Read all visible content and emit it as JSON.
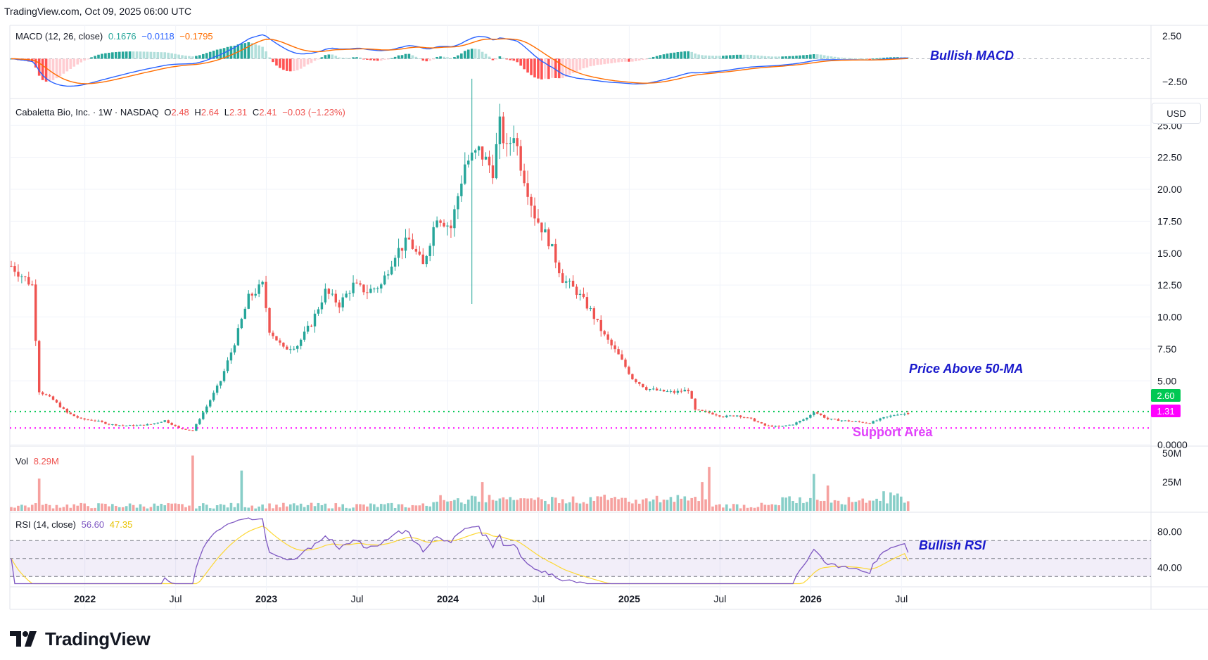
{
  "header": {
    "source": "TradingView.com, Oct 09, 2025 06:00 UTC"
  },
  "brand": {
    "name": "TradingView",
    "color": "#131722"
  },
  "colors": {
    "up": "#26a69a",
    "down": "#ef5350",
    "macd": "#2962ff",
    "signal": "#ff6d00",
    "rsi": "#7e57c2",
    "rsi_ma": "#fdd835",
    "ma_line": "#00c853",
    "support": "#ff00ff",
    "annotation_blue": "#1a1acc",
    "annotation_magenta": "#e040fb"
  },
  "macd": {
    "label": "MACD (12, 26, close)",
    "hist": "0.1676",
    "macd_value": "−0.0118",
    "signal_value": "−0.1795",
    "ticks": [
      "2.50",
      "−2.50"
    ],
    "annotation": "Bullish MACD"
  },
  "main": {
    "symbol": "Cabaletta Bio, Inc. · 1W · NASDAQ",
    "o_label": "O",
    "o": "2.48",
    "h_label": "H",
    "h": "2.64",
    "l_label": "L",
    "l": "2.31",
    "c_label": "C",
    "c": "2.41",
    "change": "−0.03 (−1.23%)",
    "currency_button": "USD",
    "price_ticks": [
      "25.00",
      "22.50",
      "20.00",
      "17.50",
      "15.00",
      "12.50",
      "10.00",
      "7.50",
      "5.00",
      "0.0000"
    ],
    "ma_tag": "2.60",
    "support_tag": "1.31",
    "annotation_ma": "Price Above 50-MA",
    "annotation_support": "Support Area"
  },
  "volume": {
    "label": "Vol",
    "value": "8.29M",
    "ticks": [
      "50M",
      "25M"
    ]
  },
  "rsi": {
    "label": "RSI (14, close)",
    "value": "56.60",
    "ma_value": "47.35",
    "ticks": [
      "80.00",
      "40.00"
    ],
    "annotation": "Bullish RSI"
  },
  "time_axis": [
    "2022",
    "Jul",
    "2023",
    "Jul",
    "2024",
    "Jul",
    "2025",
    "Jul",
    "2026",
    "Jul"
  ],
  "chart_data": {
    "type": "candlestick",
    "title": "Cabaletta Bio, Inc. · 1W · NASDAQ",
    "x_start": "2021-11-01",
    "interval": "1W",
    "x_axis_ticks": [
      "2022",
      "Jul",
      "2023",
      "Jul",
      "2024",
      "Jul",
      "2025",
      "Jul",
      "2026",
      "Jul"
    ],
    "ylim": [
      0,
      27
    ],
    "close_path": [
      [
        0,
        14.0
      ],
      [
        6,
        12.5
      ],
      [
        8,
        4.2
      ],
      [
        12,
        3.5
      ],
      [
        16,
        2.5
      ],
      [
        20,
        2.0
      ],
      [
        24,
        1.9
      ],
      [
        28,
        1.6
      ],
      [
        32,
        1.5
      ],
      [
        36,
        1.5
      ],
      [
        40,
        1.6
      ],
      [
        44,
        1.9
      ],
      [
        48,
        1.3
      ],
      [
        52,
        1.1
      ],
      [
        56,
        3.0
      ],
      [
        60,
        5.0
      ],
      [
        64,
        8.0
      ],
      [
        68,
        11.5
      ],
      [
        72,
        12.5
      ],
      [
        74,
        9.0
      ],
      [
        78,
        7.5
      ],
      [
        82,
        7.8
      ],
      [
        86,
        9.5
      ],
      [
        90,
        12.0
      ],
      [
        94,
        11.0
      ],
      [
        98,
        12.5
      ],
      [
        102,
        12.0
      ],
      [
        106,
        12.5
      ],
      [
        110,
        15.0
      ],
      [
        114,
        16.0
      ],
      [
        118,
        14.0
      ],
      [
        122,
        18.0
      ],
      [
        126,
        17.0
      ],
      [
        130,
        22.0
      ],
      [
        134,
        23.0
      ],
      [
        138,
        21.5
      ],
      [
        140,
        25.0
      ],
      [
        142,
        23.0
      ],
      [
        144,
        24.5
      ],
      [
        146,
        22.0
      ],
      [
        150,
        18.0
      ],
      [
        154,
        16.0
      ],
      [
        158,
        13.0
      ],
      [
        162,
        12.0
      ],
      [
        166,
        10.5
      ],
      [
        170,
        8.5
      ],
      [
        174,
        7.0
      ],
      [
        178,
        5.2
      ],
      [
        182,
        4.4
      ],
      [
        186,
        4.2
      ],
      [
        190,
        4.1
      ],
      [
        194,
        4.3
      ],
      [
        196,
        2.7
      ],
      [
        200,
        2.5
      ],
      [
        204,
        2.2
      ],
      [
        208,
        2.3
      ],
      [
        212,
        2.0
      ],
      [
        216,
        1.5
      ],
      [
        220,
        1.4
      ],
      [
        224,
        1.6
      ],
      [
        228,
        2.1
      ],
      [
        230,
        2.6
      ],
      [
        234,
        2.0
      ],
      [
        238,
        1.9
      ],
      [
        242,
        1.8
      ],
      [
        246,
        1.7
      ],
      [
        250,
        2.1
      ],
      [
        254,
        2.4
      ],
      [
        257,
        2.41
      ]
    ],
    "moving_average_50": 2.6,
    "support_level": 1.31,
    "last": {
      "open": 2.48,
      "high": 2.64,
      "low": 2.31,
      "close": 2.41,
      "change": -0.03,
      "change_pct": -1.23
    },
    "volume": {
      "last": "8.29M",
      "ylim_millions": [
        0,
        50
      ]
    },
    "macd": {
      "ylim": [
        -4.2,
        3.5
      ],
      "hist": 0.1676,
      "macd": -0.0118,
      "signal": -0.1795
    },
    "rsi": {
      "ylim": [
        20,
        100
      ],
      "value": 56.6,
      "ma": 47.35,
      "bands": [
        70,
        50,
        30
      ]
    }
  }
}
